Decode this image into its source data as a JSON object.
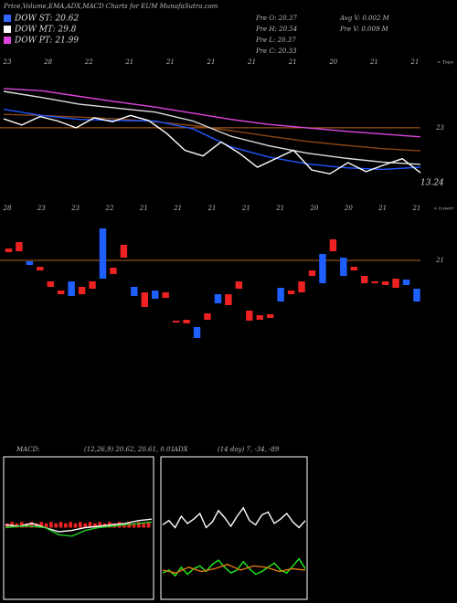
{
  "header": {
    "title": "Price,Volume,EMA,ADX,MACD Charts for EUM MunafaSutra.com",
    "legend": [
      {
        "label": "DOW ST: 20.62",
        "color": "#3366ff"
      },
      {
        "label": "DOW MT: 29.8",
        "color": "#ffffff"
      },
      {
        "label": "DOW PT: 21.99",
        "color": "#dd44dd"
      }
    ],
    "stats_left": [
      "Pre O: 20.37",
      "Pre H: 20.54",
      "Pre L: 20.37",
      "Pre C: 20.33"
    ],
    "stats_right": [
      "Avg V: 0.002 M",
      "Pre V: 0.009 M"
    ]
  },
  "chart_data": [
    {
      "type": "line",
      "corner_label": "< Topo",
      "ylim": [
        11.6,
        36
      ],
      "yticks": [
        23
      ],
      "ref_color": "#b5651d",
      "last_value": 13.24,
      "date_labels": [
        "23",
        "28",
        "22",
        "21",
        "21",
        "21",
        "21",
        "21",
        "20",
        "21",
        "21"
      ],
      "series": [
        {
          "color": "#dd44dd",
          "values": [
            30,
            29.6,
            28.6,
            27.6,
            26.7,
            25.6,
            24.5,
            23.6,
            23,
            22.4,
            21.9,
            21.4
          ]
        },
        {
          "color": "#8b4513",
          "values": [
            25.4,
            25.2,
            24.9,
            24.6,
            24.1,
            23.4,
            22.5,
            21.5,
            20.6,
            19.9,
            19.3,
            18.9
          ]
        },
        {
          "color": "#dddddd",
          "values": [
            29.5,
            28.4,
            27.2,
            26.5,
            25.8,
            24.2,
            21.5,
            19.8,
            18.5,
            17.6,
            16.9,
            16.5
          ]
        },
        {
          "color": "#2255ff",
          "values": [
            26.3,
            25.2,
            24.5,
            24.3,
            24.2,
            22.8,
            19.6,
            17.8,
            16.6,
            15.9,
            15.6,
            16.0
          ]
        },
        {
          "color": "#ffffff",
          "values": [
            24.6,
            23.5,
            25,
            24.2,
            23,
            24.8,
            24.1,
            25.2,
            24.3,
            22,
            19,
            18,
            20.5,
            18.5,
            16,
            17.5,
            19,
            15.5,
            14.8,
            16.8,
            15.2,
            16.4,
            17.5,
            15
          ]
        }
      ]
    },
    {
      "type": "candlestick",
      "corner_label": "< Lower",
      "ylim": [
        18.95,
        21.55
      ],
      "yticks": [
        21
      ],
      "ref_color": "#b5651d",
      "up_color": "#1f5fff",
      "down_color": "#ee2222",
      "date_labels": [
        "28",
        "23",
        "23",
        "22",
        "21",
        "21",
        "21",
        "21",
        "21",
        "20",
        "20",
        "21",
        "21"
      ],
      "open": [
        21.13,
        21.2,
        20.95,
        20.93,
        20.77,
        20.67,
        20.61,
        20.71,
        20.77,
        20.8,
        20.92,
        21.17,
        20.61,
        20.65,
        20.58,
        20.65,
        20.34,
        20.35,
        20.15,
        20.42,
        20.53,
        20.63,
        20.77,
        20.45,
        20.4,
        20.41,
        20.55,
        20.67,
        20.77,
        20.89,
        20.75,
        21.23,
        20.83,
        20.93,
        20.83,
        20.77,
        20.77,
        20.8,
        20.73,
        20.55
      ],
      "close": [
        21.09,
        21.1,
        20.99,
        20.89,
        20.71,
        20.63,
        20.77,
        20.63,
        20.69,
        21.35,
        20.85,
        21.03,
        20.71,
        20.49,
        20.67,
        20.59,
        20.32,
        20.31,
        20.27,
        20.35,
        20.63,
        20.51,
        20.69,
        20.34,
        20.35,
        20.37,
        20.7,
        20.63,
        20.65,
        20.83,
        21.07,
        21.1,
        21.03,
        20.89,
        20.75,
        20.75,
        20.73,
        20.7,
        20.79,
        20.69
      ]
    },
    {
      "type": "line",
      "title": "MACD:",
      "subtitle": "(12,26,9) 20.62, 20.61, 0.01",
      "ylim": [
        -0.5,
        0.5
      ],
      "hist_color": "#ee2222",
      "histogram": [
        0.03,
        0.04,
        0.03,
        0.04,
        0.03,
        0.04,
        0.03,
        0.04,
        0.03,
        0.04,
        0.03,
        0.04,
        0.03,
        0.04,
        0.03,
        0.04,
        0.03,
        0.04,
        0.03,
        0.04,
        0.03,
        0.04,
        0.03,
        0.04,
        0.03,
        0.04,
        0.03,
        0.04,
        0.03,
        0.04
      ],
      "series": [
        {
          "color": "#ffffff",
          "values": [
            0.02,
            0.01,
            0.03,
            0.0,
            -0.03,
            -0.02,
            0.0,
            0.01,
            0.02,
            0.03,
            0.05,
            0.06
          ]
        },
        {
          "color": "#22cc22",
          "values": [
            0.0,
            0.01,
            0.01,
            0.0,
            -0.05,
            -0.06,
            -0.02,
            0.0,
            0.01,
            0.02,
            0.03,
            0.04
          ]
        }
      ]
    },
    {
      "type": "line",
      "title": "ADX",
      "subtitle": "(14 day) 7, -34, -89",
      "ylim": [
        0,
        100
      ],
      "series": [
        {
          "color": "#ffffff",
          "values": [
            52,
            55,
            50,
            58,
            53,
            56,
            60,
            50,
            54,
            62,
            57,
            51,
            58,
            64,
            55,
            52,
            59,
            61,
            53,
            56,
            60,
            54,
            50,
            55
          ]
        },
        {
          "color": "#22ee22",
          "values": [
            18,
            20,
            16,
            22,
            17,
            21,
            23,
            19,
            24,
            27,
            22,
            18,
            20,
            26,
            21,
            17,
            19,
            22,
            25,
            20,
            18,
            23,
            28,
            21
          ]
        },
        {
          "color": "#dd7711",
          "values": [
            20,
            18,
            22,
            19,
            21,
            24,
            20,
            23,
            22,
            19,
            21,
            20
          ]
        }
      ]
    }
  ]
}
